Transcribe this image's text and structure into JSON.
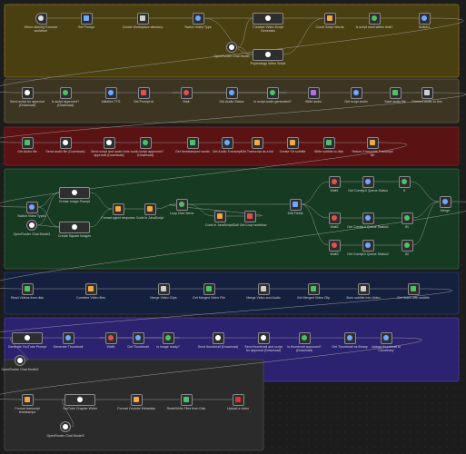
{
  "nodes": [
    {
      "label": "When clicking 'Execute workflow'"
    },
    {
      "label": "Set Prompt"
    },
    {
      "label": "Create Workspace directory"
    },
    {
      "label": "Switch Video Type"
    },
    {
      "label": "Creative Video Script Generator"
    },
    {
      "label": "Count Script Words"
    },
    {
      "label": "Is script word within limit?"
    },
    {
      "label": "Switch1"
    },
    {
      "label": "OpenRouter Chat Model"
    },
    {
      "label": "Psychology Video Script"
    },
    {
      "label": "Send script for approval (Download)"
    },
    {
      "label": "Is script approved? (Download)"
    },
    {
      "label": "Initialize TTS"
    },
    {
      "label": "Set Prompt id"
    },
    {
      "label": "Wait"
    },
    {
      "label": "Get Audio Status"
    },
    {
      "label": "Is script audio generated?"
    },
    {
      "label": "Write audio"
    },
    {
      "label": "Get script audio"
    },
    {
      "label": "Save audio file"
    },
    {
      "label": "Convert audio to text"
    },
    {
      "label": "Get Audio file"
    },
    {
      "label": "Send audio file (Download)"
    },
    {
      "label": "Send script and audio for approval (Download)"
    },
    {
      "label": "Is audio script approved? (Download)"
    },
    {
      "label": "Get timestamped words"
    },
    {
      "label": "Get Audio Transcript"
    },
    {
      "label": "Get Transcript as a list"
    },
    {
      "label": "Create Srt subtitle"
    },
    {
      "label": "Write subtitle to disk"
    },
    {
      "label": "Return 3 seconds Transcript list"
    },
    {
      "label": "Create Image Prompt"
    },
    {
      "label": "Switch Video Type1"
    },
    {
      "label": "OpenRouter Chat Model1"
    },
    {
      "label": "Create Square Images"
    },
    {
      "label": "Format agent response"
    },
    {
      "label": "Code in JavaScript"
    },
    {
      "label": "Loop Over Items"
    },
    {
      "label": "Code in JavaScript1"
    },
    {
      "label": "Call Get Loop workflow"
    },
    {
      "label": "Edit Fields"
    },
    {
      "label": "Wait1"
    },
    {
      "label": "Get ComfyUI Queue Status"
    },
    {
      "label": "If"
    },
    {
      "label": "Wait2"
    },
    {
      "label": "Get ComfyUI Queue Status1"
    },
    {
      "label": "If1"
    },
    {
      "label": "Wait3"
    },
    {
      "label": "Get ComfyUI Queue Status2"
    },
    {
      "label": "If2"
    },
    {
      "label": "Merge"
    },
    {
      "label": "Read Videos from disk"
    },
    {
      "label": "Combine Video files"
    },
    {
      "label": "Merge Video Clips"
    },
    {
      "label": "Get Merged Video File"
    },
    {
      "label": "Merge Video and Audio"
    },
    {
      "label": "Get Merged Video Clip"
    },
    {
      "label": "Burn subtitle into Video"
    },
    {
      "label": "Get Video with subtitle"
    },
    {
      "label": "Generate YouTube Prompt"
    },
    {
      "label": "OpenRouter Chat Model2"
    },
    {
      "label": "Generate Thumbnail"
    },
    {
      "label": "Wait4"
    },
    {
      "label": "Get Thumbnail"
    },
    {
      "label": "Is image ready?"
    },
    {
      "label": "Send thumbnail (Download)"
    },
    {
      "label": "Send thumbnail and script for approval (Download)"
    },
    {
      "label": "Is thumbnail approved? (Download)"
    },
    {
      "label": "Get Thumbnail as Binary"
    },
    {
      "label": "Upload thumbnail to Cloudinary"
    },
    {
      "label": "Format transcript timestamps"
    },
    {
      "label": "YouTube Chapter Writer"
    },
    {
      "label": "OpenRouter Chat Model3"
    },
    {
      "label": "Format Youtube Metadata"
    },
    {
      "label": "Read/Write Files from Disk"
    },
    {
      "label": "Upload a video"
    }
  ]
}
